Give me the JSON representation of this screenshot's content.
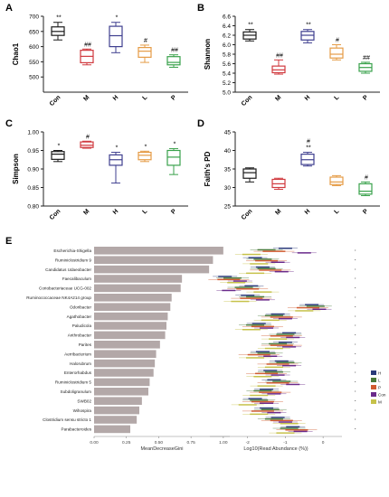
{
  "panel_letters": {
    "A": "A",
    "B": "B",
    "C": "C",
    "D": "D",
    "E": "E"
  },
  "groups": [
    "Con",
    "M",
    "H",
    "L",
    "P"
  ],
  "group_colors": [
    "#1a1a1a",
    "#d0393e",
    "#3f3f8f",
    "#e59b45",
    "#3aa24c"
  ],
  "chart_data": [
    {
      "type": "box",
      "panel": "A",
      "ylabel": "Chao1",
      "ylim": [
        450,
        700
      ],
      "yticks": [
        500,
        550,
        600,
        650,
        700
      ],
      "categories": [
        "Con",
        "M",
        "H",
        "L",
        "P"
      ],
      "boxes": [
        {
          "min": 622,
          "q1": 637,
          "median": 650,
          "q3": 665,
          "max": 680
        },
        {
          "min": 540,
          "q1": 547,
          "median": 568,
          "q3": 588,
          "max": 592
        },
        {
          "min": 580,
          "q1": 600,
          "median": 636,
          "q3": 667,
          "max": 680
        },
        {
          "min": 548,
          "q1": 565,
          "median": 585,
          "q3": 597,
          "max": 605
        },
        {
          "min": 532,
          "q1": 540,
          "median": 548,
          "q3": 567,
          "max": 573
        }
      ],
      "annotations": [
        "**",
        "##",
        "*",
        "#",
        "##"
      ]
    },
    {
      "type": "box",
      "panel": "B",
      "ylabel": "Shannon",
      "ylim": [
        5.0,
        6.6
      ],
      "yticks": [
        5.0,
        5.2,
        5.4,
        5.6,
        5.8,
        6.0,
        6.2,
        6.4,
        6.6
      ],
      "categories": [
        "Con",
        "M",
        "H",
        "L",
        "P"
      ],
      "boxes": [
        {
          "min": 6.08,
          "q1": 6.12,
          "median": 6.2,
          "q3": 6.27,
          "max": 6.32
        },
        {
          "min": 5.38,
          "q1": 5.41,
          "median": 5.47,
          "q3": 5.55,
          "max": 5.68
        },
        {
          "min": 6.04,
          "q1": 6.1,
          "median": 6.2,
          "q3": 6.28,
          "max": 6.32
        },
        {
          "min": 5.68,
          "q1": 5.72,
          "median": 5.8,
          "q3": 5.93,
          "max": 6.0
        },
        {
          "min": 5.4,
          "q1": 5.44,
          "median": 5.52,
          "q3": 5.6,
          "max": 5.63
        }
      ],
      "annotations": [
        "**",
        "##",
        "**",
        "#",
        "##"
      ]
    },
    {
      "type": "box",
      "panel": "C",
      "ylabel": "Simpson",
      "ylim": [
        0.8,
        1.0
      ],
      "yticks": [
        0.8,
        0.85,
        0.9,
        0.95,
        1.0
      ],
      "categories": [
        "Con",
        "M",
        "H",
        "L",
        "P"
      ],
      "boxes": [
        {
          "min": 0.92,
          "q1": 0.926,
          "median": 0.94,
          "q3": 0.947,
          "max": 0.95
        },
        {
          "min": 0.956,
          "q1": 0.958,
          "median": 0.964,
          "q3": 0.973,
          "max": 0.975
        },
        {
          "min": 0.862,
          "q1": 0.91,
          "median": 0.925,
          "q3": 0.938,
          "max": 0.945
        },
        {
          "min": 0.92,
          "q1": 0.925,
          "median": 0.937,
          "q3": 0.945,
          "max": 0.948
        },
        {
          "min": 0.885,
          "q1": 0.91,
          "median": 0.932,
          "q3": 0.95,
          "max": 0.955
        }
      ],
      "annotations": [
        "*",
        "#",
        "*",
        "*",
        "*"
      ]
    },
    {
      "type": "box",
      "panel": "D",
      "ylabel": "Faith's PD",
      "ylim": [
        25,
        45
      ],
      "yticks": [
        25,
        30,
        35,
        40,
        45
      ],
      "categories": [
        "Con",
        "M",
        "H",
        "L",
        "P"
      ],
      "boxes": [
        {
          "min": 31.5,
          "q1": 32.5,
          "median": 34.0,
          "q3": 35.0,
          "max": 35.3
        },
        {
          "min": 29.5,
          "q1": 30.0,
          "median": 31.0,
          "q3": 32.2,
          "max": 32.5
        },
        {
          "min": 35.8,
          "q1": 36.2,
          "median": 37.5,
          "q3": 39.0,
          "max": 39.5
        },
        {
          "min": 30.5,
          "q1": 30.8,
          "median": 31.5,
          "q3": 32.8,
          "max": 33.2
        },
        {
          "min": 27.8,
          "q1": 28.2,
          "median": 29.0,
          "q3": 31.0,
          "max": 31.5
        }
      ],
      "annotations": [
        "",
        "",
        "#\n**",
        "",
        "#"
      ]
    },
    {
      "type": "bar",
      "panel": "E-left",
      "orientation": "horizontal",
      "xlabel": "MeanDecreaseGini",
      "xlim": [
        0,
        1.05
      ],
      "xticks": [
        "0.00",
        "0.25",
        "0.50",
        "0.75",
        "1.00"
      ],
      "categories": [
        "Escherichia-Shigella",
        "Ruminiclostridium 9",
        "Candidatus Udaeobacter",
        "Faecalibaculum",
        "Coriobacteriaceae UCG-002",
        "Ruminococcaceae NK4A214 group",
        "Odoribacter",
        "Agathobacter",
        "Paludicola",
        "Anthrobacter",
        "Parites",
        "Aerribacterium",
        "Halorubrum",
        "Enterorhabdus",
        "Ruminiclostridium 5",
        "Subdoligranulum",
        "SWB02",
        "Wihospira",
        "Clostridium sensu stricto 1",
        "Parabacteroides"
      ],
      "values": [
        1.0,
        0.92,
        0.89,
        0.68,
        0.67,
        0.6,
        0.59,
        0.57,
        0.56,
        0.55,
        0.51,
        0.48,
        0.47,
        0.46,
        0.43,
        0.42,
        0.37,
        0.35,
        0.33,
        0.28
      ]
    },
    {
      "type": "box",
      "panel": "E-right",
      "orientation": "horizontal",
      "xlabel": "Log10(Read Abundance (%))",
      "xlim": [
        -3,
        0.5
      ],
      "xticks": [
        "-2",
        "-1",
        "0"
      ],
      "series": [
        "H",
        "L",
        "P",
        "Con",
        "M"
      ],
      "rows": [
        [
          -1.0,
          -1.5,
          -1.3,
          -0.5,
          -1.9
        ],
        [
          -1.8,
          -1.6,
          -1.5,
          -1.2,
          -1.7
        ],
        [
          -1.6,
          -1.5,
          -1.4,
          -1.1,
          -1.8
        ],
        [
          -2.6,
          -2.4,
          -2.5,
          -2.2,
          -2.3
        ],
        [
          -1.9,
          -2.1,
          -2.0,
          -2.5,
          -1.6
        ],
        [
          -2.0,
          -1.8,
          -1.9,
          -1.6,
          -2.2
        ],
        [
          -0.3,
          -0.2,
          -0.4,
          -0.1,
          -0.5
        ],
        [
          -1.2,
          -1.3,
          -1.1,
          -1.0,
          -1.4
        ],
        [
          -1.7,
          -1.8,
          -1.6,
          -1.5,
          -1.9
        ],
        [
          -0.9,
          -1.0,
          -1.1,
          -0.8,
          -1.2
        ],
        [
          -1.0,
          -1.2,
          -1.1,
          -0.9,
          -1.3
        ],
        [
          -1.6,
          -1.5,
          -1.7,
          -1.4,
          -1.8
        ],
        [
          -1.1,
          -1.0,
          -1.2,
          -0.9,
          -1.3
        ],
        [
          -1.4,
          -1.3,
          -1.5,
          -1.2,
          -1.6
        ],
        [
          -1.3,
          -1.1,
          -1.2,
          -0.8,
          -1.5
        ],
        [
          -1.5,
          -1.6,
          -1.4,
          -1.3,
          -1.7
        ],
        [
          -1.8,
          -1.7,
          -1.6,
          -1.5,
          -2.0
        ],
        [
          -1.5,
          -1.4,
          -1.6,
          -1.3,
          -1.7
        ],
        [
          -1.2,
          -1.3,
          -1.1,
          -1.0,
          -0.9
        ],
        [
          -0.8,
          -0.9,
          -0.7,
          -0.6,
          -1.0
        ]
      ]
    }
  ]
}
